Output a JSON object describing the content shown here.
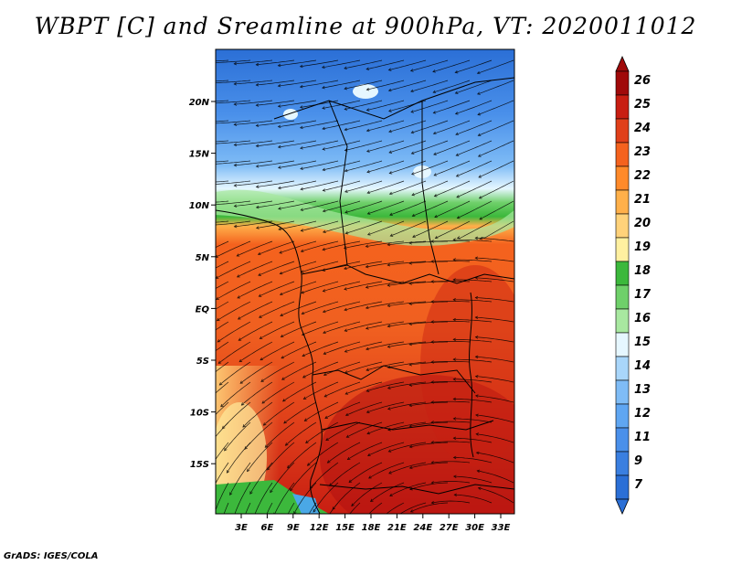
{
  "title": "WBPT [C] and Sreamline at 900hPa, VT: 2020011012",
  "credit": "GrADS: IGES/COLA",
  "colors": {
    "stops": [
      "#2b6fd6",
      "#3a7fe0",
      "#4a90ea",
      "#5fa6f2",
      "#7fbcf6",
      "#a9d6fa",
      "#e6f7ff",
      "#a8e8a0",
      "#6fd06a",
      "#3cb83c",
      "#fff0a0",
      "#ffd27a",
      "#ffb04a",
      "#ff8a2a",
      "#f4621e",
      "#e0401a",
      "#c81e12",
      "#a00a0a"
    ],
    "ocean": "#4aa8e6",
    "coast": "#000000",
    "streamline": "#000000"
  },
  "chart_data": {
    "type": "map",
    "title": "WBPT [C] and Sreamline at 900hPa, VT: 2020011012",
    "variable": "Wet-bulb potential temperature (C) with streamlines at 900hPa",
    "lon_ticks": [
      "3E",
      "6E",
      "9E",
      "12E",
      "15E",
      "18E",
      "21E",
      "24E",
      "27E",
      "30E",
      "33E"
    ],
    "lat_ticks": [
      "20N",
      "15N",
      "10N",
      "5N",
      "EQ",
      "5S",
      "10S",
      "15S"
    ],
    "colorbar": {
      "labels": [
        "26",
        "25",
        "24",
        "23",
        "22",
        "21",
        "20",
        "19",
        "18",
        "17",
        "16",
        "15",
        "14",
        "13",
        "12",
        "11",
        "9",
        "7"
      ],
      "colors": [
        "#a00a0a",
        "#c81e12",
        "#e0401a",
        "#f4621e",
        "#ff8a2a",
        "#ffb04a",
        "#ffd27a",
        "#fff0a0",
        "#3cb83c",
        "#6fd06a",
        "#a8e8a0",
        "#e6f7ff",
        "#a9d6fa",
        "#7fbcf6",
        "#5fa6f2",
        "#4a90ea",
        "#3a7fe0",
        "#2b6fd6"
      ]
    }
  }
}
